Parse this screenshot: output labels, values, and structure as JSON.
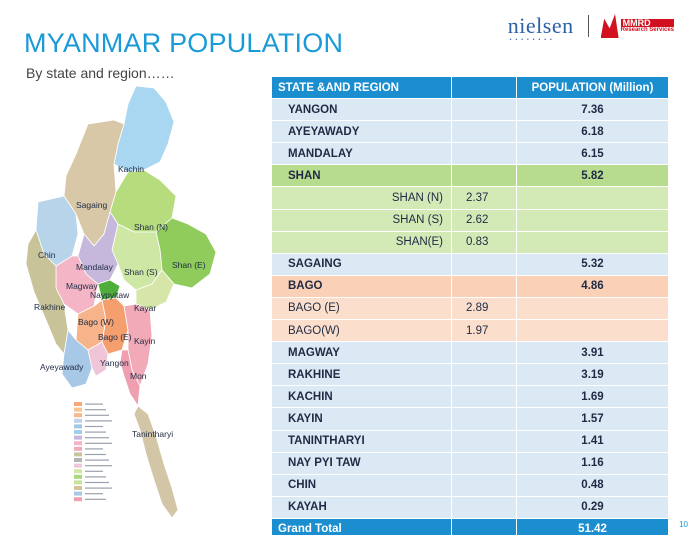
{
  "header": {
    "title": "MYANMAR POPULATION",
    "subtitle": "By state and region……",
    "logo_nielsen": "nielsen",
    "logo_mmrd": "MMRD",
    "logo_mmrd_sub": "Research Services"
  },
  "map": {
    "labels": {
      "kachin": "Kachin",
      "sagaing": "Sagaing",
      "shan_n": "Shan (N)",
      "chin": "Chin",
      "mandalay": "Mandalay",
      "shan_s": "Shan (S)",
      "shan_e": "Shan (E)",
      "magway": "Magway",
      "naypyitaw": "Naypyitaw",
      "rakhine": "Rakhine",
      "kayar": "Kayar",
      "bago_w": "Bago (W)",
      "bago_e": "Bago (E)",
      "kayin": "Kayin",
      "ayeyawady": "Ayeyawady",
      "yangon": "Yangon",
      "mon": "Mon",
      "tanintharyi": "Tanintharyi"
    },
    "legend_colors": [
      "#f5a97b",
      "#f7c590",
      "#f9b88a",
      "#bcd3ea",
      "#a4c7e6",
      "#9fd0ee",
      "#c5b8dc",
      "#f2b5c8",
      "#f2aab8",
      "#c8c49a",
      "#b3b3b3",
      "#f0c5d8",
      "#cfe7a4",
      "#a8d978",
      "#c9e39a",
      "#d4c49c",
      "#a8c8e8",
      "#ee9fb0"
    ]
  },
  "table": {
    "headers": {
      "region": "STATE &AND REGION",
      "blank": "",
      "population": "POPULATION (Million)"
    },
    "rows": [
      {
        "style": "plain",
        "name": "YANGON",
        "sub": "",
        "pop": "7.36"
      },
      {
        "style": "plain",
        "name": "AYEYAWADY",
        "sub": "",
        "pop": "6.18"
      },
      {
        "style": "plain",
        "name": "MANDALAY",
        "sub": "",
        "pop": "6.15"
      },
      {
        "style": "shan",
        "name": "SHAN",
        "sub": "",
        "pop": "5.82"
      },
      {
        "style": "shan-sub",
        "name": "SHAN (N)",
        "sub": "2.37",
        "pop": ""
      },
      {
        "style": "shan-sub",
        "name": "SHAN (S)",
        "sub": "2.62",
        "pop": ""
      },
      {
        "style": "shan-sub",
        "name": "SHAN(E)",
        "sub": "0.83",
        "pop": ""
      },
      {
        "style": "plain",
        "name": "SAGAING",
        "sub": "",
        "pop": "5.32"
      },
      {
        "style": "bago",
        "name": "BAGO",
        "sub": "",
        "pop": "4.86"
      },
      {
        "style": "bago-sub",
        "name": "BAGO (E)",
        "sub": "2.89",
        "pop": ""
      },
      {
        "style": "bago-sub",
        "name": "BAGO(W)",
        "sub": "1.97",
        "pop": ""
      },
      {
        "style": "plain",
        "name": "MAGWAY",
        "sub": "",
        "pop": "3.91"
      },
      {
        "style": "plain",
        "name": "RAKHINE",
        "sub": "",
        "pop": "3.19"
      },
      {
        "style": "plain",
        "name": "KACHIN",
        "sub": "",
        "pop": "1.69"
      },
      {
        "style": "plain",
        "name": "KAYIN",
        "sub": "",
        "pop": "1.57"
      },
      {
        "style": "plain",
        "name": "TANINTHARYI",
        "sub": "",
        "pop": "1.41"
      },
      {
        "style": "plain",
        "name": "NAY PYI TAW",
        "sub": "",
        "pop": "1.16"
      },
      {
        "style": "plain",
        "name": "CHIN",
        "sub": "",
        "pop": "0.48"
      },
      {
        "style": "plain",
        "name": "KAYAH",
        "sub": "",
        "pop": "0.29"
      }
    ],
    "total": {
      "name": "Grand Total",
      "pop": "51.42"
    }
  },
  "page_number": "10"
}
